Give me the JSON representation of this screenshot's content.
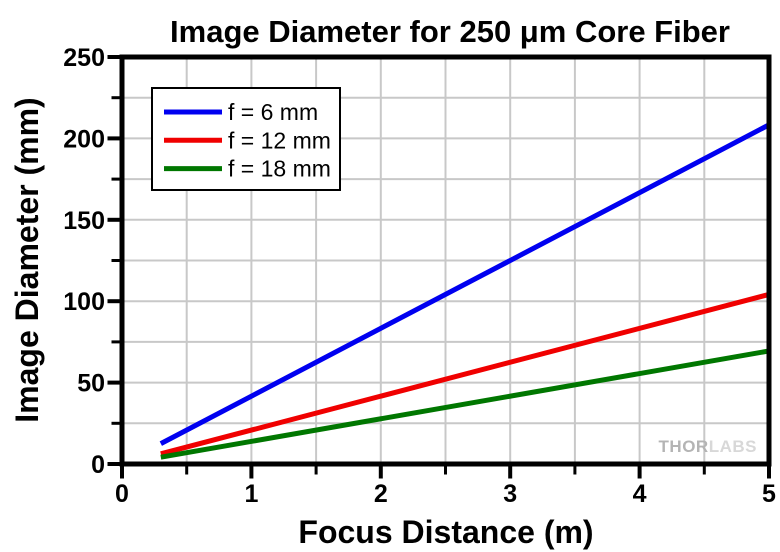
{
  "page": {
    "background": "#ffffff"
  },
  "chart_data": {
    "type": "line",
    "title": "Image Diameter for 250 μm Core Fiber",
    "xlabel": "Focus Distance (m)",
    "ylabel": "Image Diameter (mm)",
    "xlim": [
      0,
      5
    ],
    "ylim": [
      0,
      250
    ],
    "x_major_ticks": [
      0,
      1,
      2,
      3,
      4,
      5
    ],
    "x_minor_ticks": [
      0.5,
      1.5,
      2.5,
      3.5,
      4.5
    ],
    "y_major_ticks": [
      0,
      50,
      100,
      150,
      200,
      250
    ],
    "y_minor_ticks": [
      25,
      75,
      125,
      175,
      225
    ],
    "grid": {
      "show": true,
      "x_lines": [
        0.5,
        1,
        1.5,
        2,
        2.5,
        3,
        3.5,
        4,
        4.5
      ],
      "y_lines": [
        25,
        50,
        75,
        100,
        125,
        150,
        175,
        200,
        225
      ],
      "color": "#c8c8c8"
    },
    "frame_color": "#000000",
    "legend": {
      "position": "top-left",
      "background": "#ffffff",
      "border_color": "#000000"
    },
    "series": [
      {
        "name": "f = 6 mm",
        "color": "#0000f0",
        "x": [
          0.3,
          5
        ],
        "y": [
          12.5,
          208.33
        ]
      },
      {
        "name": "f = 12 mm",
        "color": "#f00000",
        "x": [
          0.3,
          5
        ],
        "y": [
          6.25,
          104.17
        ]
      },
      {
        "name": "f = 18 mm",
        "color": "#007700",
        "x": [
          0.3,
          5
        ],
        "y": [
          4.17,
          69.44
        ]
      }
    ],
    "watermark": {
      "text_bold": "THOR",
      "text_light": "LABS",
      "color_bold": "#b4b4b4",
      "color_light": "#d8d8d8"
    }
  }
}
